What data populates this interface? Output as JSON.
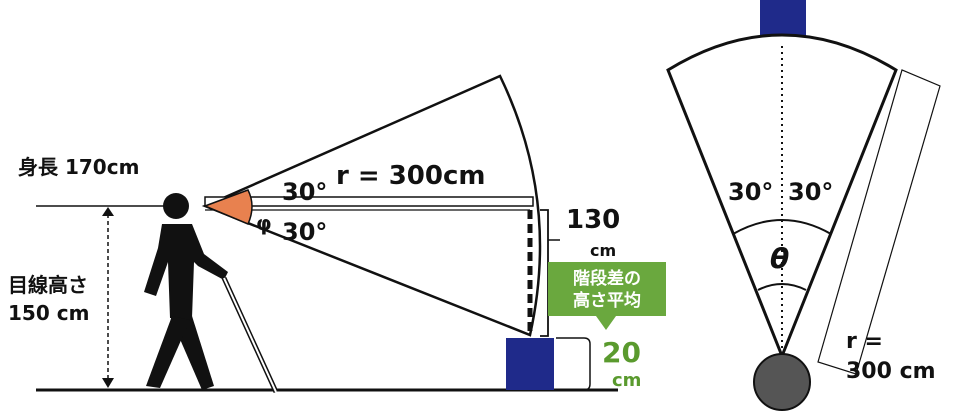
{
  "side_view": {
    "height_label": "身長 170cm",
    "eye_height_label_line1": "目線高さ",
    "eye_height_label_line2": "150 cm",
    "radius_label": "r = 300cm",
    "upper_angle_label": "30°",
    "lower_angle_label": "30°",
    "phi_symbol": "φ",
    "drop_value": "130",
    "drop_unit": "cm",
    "step_badge_line1": "階段差の",
    "step_badge_line2": "高さ平均",
    "step_value": "20",
    "step_unit": "cm"
  },
  "top_view": {
    "left_angle_label": "30°",
    "right_angle_label": "30°",
    "theta_symbol": "θ",
    "radius_label_line1": "r =",
    "radius_label_line2": "300 cm"
  },
  "colors": {
    "cone_fill": "#ffffff",
    "angle_wedge": "#e8814f",
    "obstacle": "#1f2a8a",
    "badge": "#6aa83e",
    "step_text": "#5a9a2e",
    "head": "#555555",
    "ink": "#111111"
  }
}
